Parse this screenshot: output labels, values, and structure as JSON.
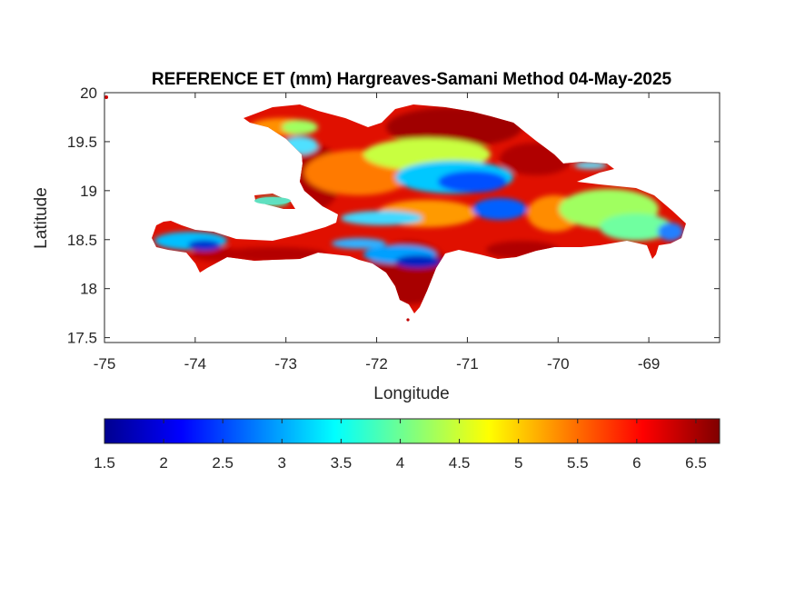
{
  "map": {
    "title": "REFERENCE ET (mm) Hargreaves-Samani Method  04-May-2025",
    "xlabel": "Longitude",
    "ylabel": "Latitude",
    "xlim": [
      -75,
      -68.22
    ],
    "ylim": [
      17.45,
      20
    ],
    "xticks": [
      "-75",
      "-74",
      "-73",
      "-72",
      "-71",
      "-70",
      "-69"
    ],
    "xtick_values": [
      -75,
      -74,
      -73,
      -72,
      -71,
      -70,
      -69
    ],
    "yticks": [
      "20",
      "19.5",
      "19",
      "18.5",
      "18",
      "17.5"
    ],
    "ytick_values": [
      20,
      19.5,
      19,
      18.5,
      18,
      17.5
    ],
    "region": "Hispaniola (Haiti and Dominican Republic)",
    "variable_range_mm": [
      1.5,
      6.7
    ]
  },
  "colorbar": {
    "colormap": "jet",
    "range": [
      1.5,
      6.7
    ],
    "ticks": [
      "1.5",
      "2",
      "2.5",
      "3",
      "3.5",
      "4",
      "4.5",
      "5",
      "5.5",
      "6",
      "6.5"
    ],
    "tick_values": [
      1.5,
      2,
      2.5,
      3,
      3.5,
      4,
      4.5,
      5,
      5.5,
      6,
      6.5
    ],
    "colors": [
      "#00008f",
      "#0000ff",
      "#00ffff",
      "#ffff00",
      "#ff0000",
      "#800000"
    ]
  }
}
